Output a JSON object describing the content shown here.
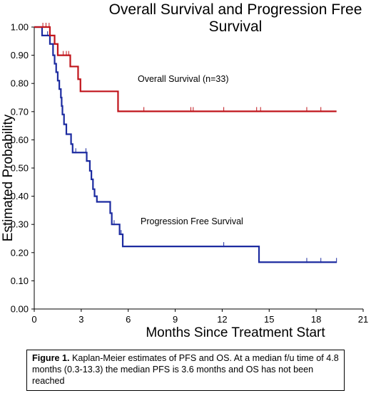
{
  "chart_data": {
    "type": "line",
    "title_lines": [
      "Overall Survival and Progression Free",
      "Survival"
    ],
    "xlabel": "Months Since Treatment Start",
    "ylabel": "Estimated Probability",
    "xlim": [
      0,
      21
    ],
    "ylim": [
      0,
      1.0
    ],
    "x_ticks": [
      0,
      3,
      6,
      9,
      12,
      15,
      18,
      21
    ],
    "x_tick_labels": [
      "0",
      "3",
      "6",
      "9",
      "12",
      "15",
      "18",
      "21"
    ],
    "y_ticks": [
      0,
      0.1,
      0.2,
      0.3,
      0.4,
      0.5,
      0.6,
      0.7,
      0.8,
      0.9,
      1.0
    ],
    "y_tick_labels": [
      "0.00",
      "0.10",
      "0.20",
      "0.30",
      "0.40",
      "0.50",
      "0.60",
      "0.70",
      "0.80",
      "0.90",
      "1.00"
    ],
    "grid": false,
    "series": [
      {
        "name": "Overall Survival (n=33)",
        "color": "#c0141b",
        "steps": [
          [
            0,
            1.0
          ],
          [
            1.0,
            0.97
          ],
          [
            1.3,
            0.94
          ],
          [
            1.5,
            0.9
          ],
          [
            2.3,
            0.86
          ],
          [
            2.8,
            0.815
          ],
          [
            2.95,
            0.772
          ],
          [
            5.35,
            0.701
          ],
          [
            19.3,
            0.701
          ]
        ],
        "censor_x": [
          0.55,
          0.75,
          0.95,
          1.85,
          2.05,
          2.2,
          7.0,
          10.0,
          10.15,
          12.1,
          14.2,
          14.45,
          17.4,
          18.3
        ]
      },
      {
        "name": "Progression Free Survival",
        "color": "#1c2ba0",
        "steps": [
          [
            0,
            1.0
          ],
          [
            0.5,
            0.97
          ],
          [
            1.0,
            0.94
          ],
          [
            1.2,
            0.9
          ],
          [
            1.3,
            0.87
          ],
          [
            1.4,
            0.84
          ],
          [
            1.5,
            0.81
          ],
          [
            1.6,
            0.78
          ],
          [
            1.7,
            0.75
          ],
          [
            1.75,
            0.72
          ],
          [
            1.8,
            0.69
          ],
          [
            1.9,
            0.655
          ],
          [
            2.05,
            0.62
          ],
          [
            2.35,
            0.585
          ],
          [
            2.45,
            0.555
          ],
          [
            3.35,
            0.525
          ],
          [
            3.55,
            0.49
          ],
          [
            3.65,
            0.46
          ],
          [
            3.75,
            0.425
          ],
          [
            3.85,
            0.4
          ],
          [
            4.0,
            0.38
          ],
          [
            4.85,
            0.34
          ],
          [
            4.95,
            0.3
          ],
          [
            5.45,
            0.265
          ],
          [
            5.65,
            0.222
          ],
          [
            14.35,
            0.166
          ],
          [
            19.3,
            0.166
          ]
        ],
        "censor_x": [
          0.85,
          2.65,
          3.3,
          5.1,
          5.55,
          12.1,
          17.4,
          18.3,
          19.3
        ]
      }
    ]
  },
  "caption": {
    "label": "Figure 1.",
    "text": " Kaplan-Meier estimates of PFS and OS. At a median f/u time of 4.8 months (0.3-13.3) the median PFS is 3.6 months and OS has not been reached"
  }
}
